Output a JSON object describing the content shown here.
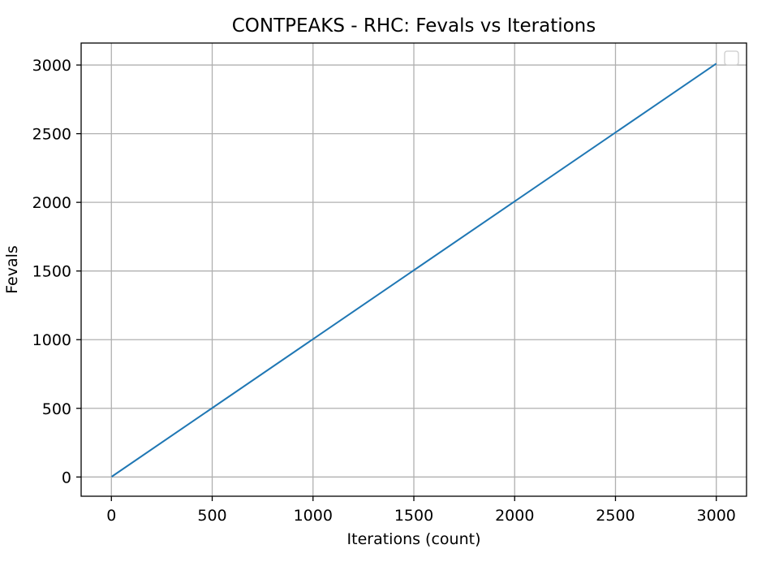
{
  "chart_data": {
    "type": "line",
    "title": "CONTPEAKS - RHC: Fevals vs Iterations",
    "xlabel": "Iterations (count)",
    "ylabel": "Fevals",
    "xlim": [
      -150,
      3150
    ],
    "ylim": [
      -140,
      3160
    ],
    "xticks": [
      "0",
      "500",
      "1000",
      "1500",
      "2000",
      "2500",
      "3000"
    ],
    "yticks": [
      "0",
      "500",
      "1000",
      "1500",
      "2000",
      "2500",
      "3000"
    ],
    "grid": true,
    "legend": "top-right (empty)",
    "series": [
      {
        "x": [
          1,
          3000
        ],
        "y": [
          2,
          3010
        ],
        "color": "#1f77b4"
      }
    ]
  }
}
